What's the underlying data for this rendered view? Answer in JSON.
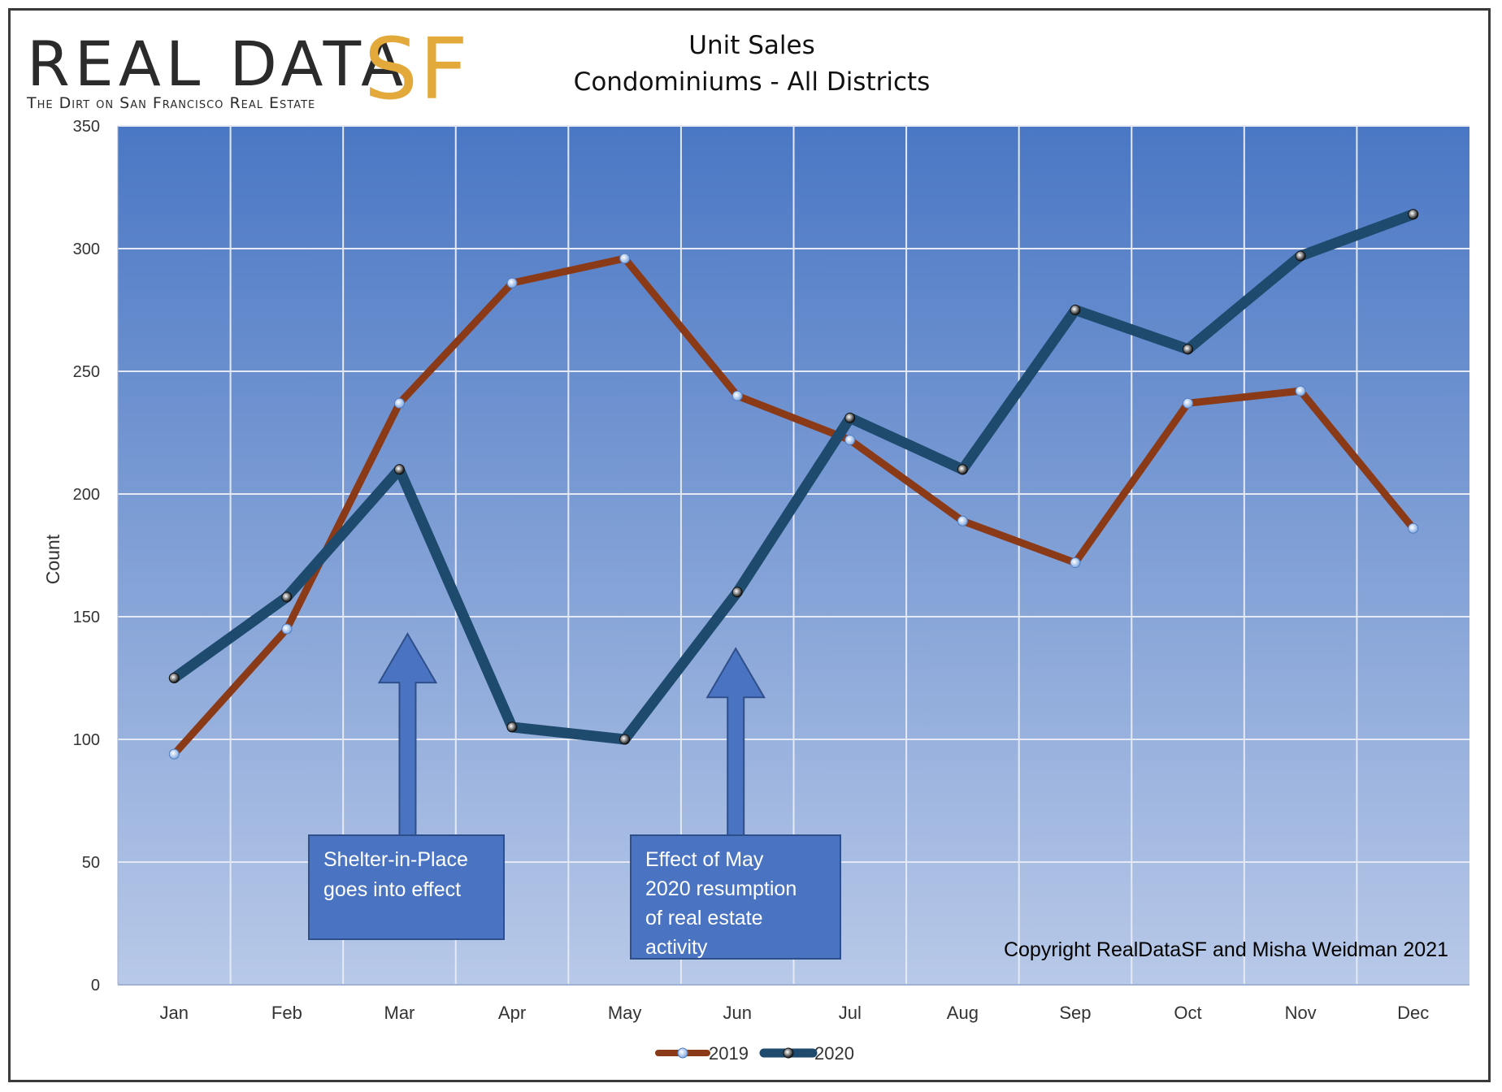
{
  "logo": {
    "main_text": "REAL DATA",
    "sf_text": "SF",
    "tagline": "The Dirt on San Francisco Real Estate"
  },
  "chart_data": {
    "type": "line",
    "title": "Unit Sales",
    "subtitle": "Condominiums  - All Districts",
    "ylabel": "Count",
    "xlabel": "",
    "ylim": [
      0,
      350
    ],
    "yticks": [
      0,
      50,
      100,
      150,
      200,
      250,
      300,
      350
    ],
    "grid": true,
    "legend_position": "bottom",
    "categories": [
      "Jan",
      "Feb",
      "Mar",
      "Apr",
      "May",
      "Jun",
      "Jul",
      "Aug",
      "Sep",
      "Oct",
      "Nov",
      "Dec"
    ],
    "series": [
      {
        "name": "2019",
        "color": "#8b3a18",
        "values": [
          94,
          145,
          237,
          286,
          296,
          240,
          222,
          189,
          172,
          237,
          242,
          186
        ]
      },
      {
        "name": "2020",
        "color": "#1e4a6e",
        "values": [
          125,
          158,
          210,
          105,
          100,
          160,
          231,
          210,
          275,
          259,
          297,
          314
        ]
      }
    ],
    "annotations": [
      {
        "lines": [
          "Shelter-in-Place",
          "goes into effect"
        ],
        "points_to": "Mar"
      },
      {
        "lines": [
          "Effect of May",
          "2020 resumption",
          "of real estate",
          "activity"
        ],
        "points_to": "Jun"
      }
    ],
    "copyright": "Copyright RealDataSF and Misha Weidman 2021",
    "colors": {
      "plot_top": "#4a77c4",
      "plot_bottom": "#b8c9e8",
      "grid": "#e4e9f3",
      "annotation_fill": "#4a74c2",
      "annotation_border": "#2f4f8a"
    }
  }
}
